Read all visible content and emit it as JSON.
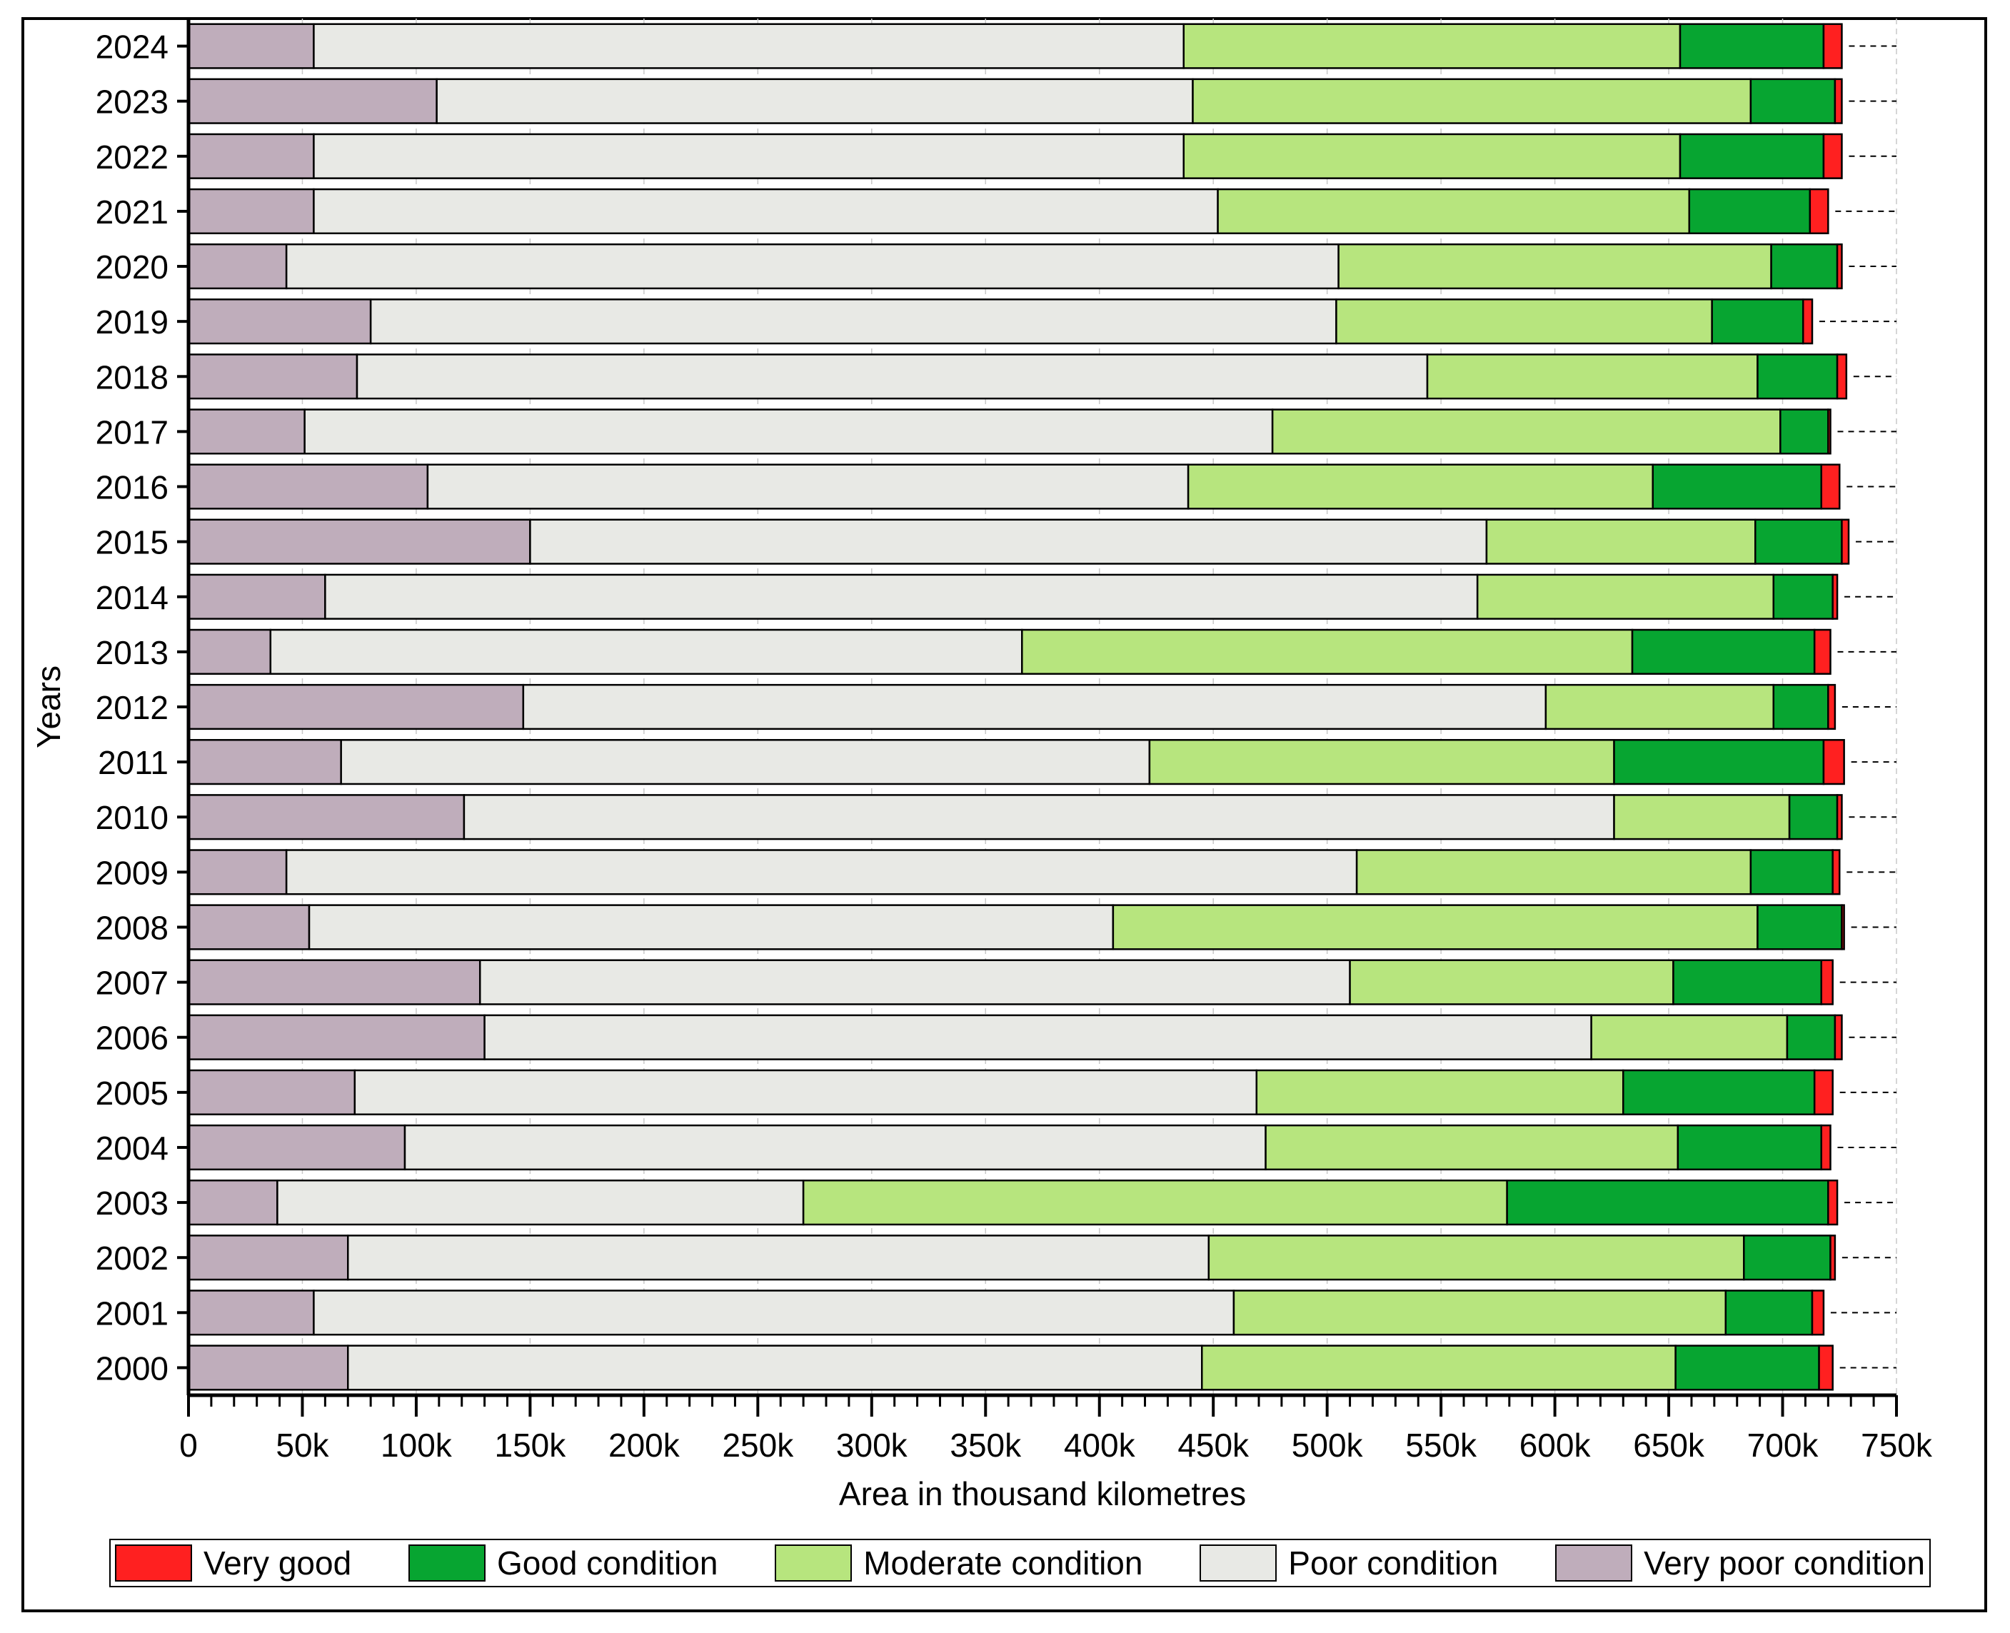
{
  "chart_data": {
    "type": "bar",
    "orientation": "horizontal",
    "stacked": true,
    "xlabel": "Area in thousand kilometres",
    "ylabel": "Years",
    "xlim": [
      0,
      750000
    ],
    "x_ticks": [
      0,
      50000,
      100000,
      150000,
      200000,
      250000,
      300000,
      350000,
      400000,
      450000,
      500000,
      550000,
      600000,
      650000,
      700000,
      750000
    ],
    "x_tick_labels": [
      "0",
      "50k",
      "100k",
      "150k",
      "200k",
      "250k",
      "300k",
      "350k",
      "400k",
      "450k",
      "500k",
      "550k",
      "600k",
      "650k",
      "700k",
      "750k"
    ],
    "grid": "dashed vertical",
    "legend_position": "bottom",
    "categories": [
      "2024",
      "2023",
      "2022",
      "2021",
      "2020",
      "2019",
      "2018",
      "2017",
      "2016",
      "2015",
      "2014",
      "2013",
      "2012",
      "2011",
      "2010",
      "2009",
      "2008",
      "2007",
      "2006",
      "2005",
      "2004",
      "2003",
      "2002",
      "2001",
      "2000"
    ],
    "stack_order": [
      "Very poor condition",
      "Poor condition",
      "Moderate condition",
      "Good condition",
      "Very good"
    ],
    "series": [
      {
        "name": "Very poor condition",
        "color": "#bfadbb",
        "values": [
          55000,
          109000,
          55000,
          55000,
          43000,
          80000,
          74000,
          51000,
          105000,
          150000,
          60000,
          36000,
          147000,
          67000,
          121000,
          43000,
          53000,
          128000,
          130000,
          73000,
          95000,
          39000,
          70000,
          55000,
          70000
        ]
      },
      {
        "name": "Poor condition",
        "color": "#e8e9e5",
        "values": [
          382000,
          332000,
          382000,
          397000,
          462000,
          424000,
          470000,
          425000,
          334000,
          420000,
          506000,
          330000,
          449000,
          355000,
          505000,
          470000,
          353000,
          382000,
          486000,
          396000,
          378000,
          231000,
          378000,
          404000,
          375000
        ]
      },
      {
        "name": "Moderate condition",
        "color": "#b7e57e",
        "values": [
          218000,
          245000,
          218000,
          207000,
          190000,
          165000,
          145000,
          223000,
          204000,
          118000,
          130000,
          268000,
          100000,
          204000,
          77000,
          173000,
          283000,
          142000,
          86000,
          161000,
          181000,
          309000,
          235000,
          216000,
          208000
        ]
      },
      {
        "name": "Good condition",
        "color": "#07a531",
        "values": [
          63000,
          37000,
          63000,
          53000,
          29000,
          40000,
          35000,
          21000,
          74000,
          38000,
          26000,
          80000,
          24000,
          92000,
          21000,
          36000,
          37000,
          65000,
          21000,
          84000,
          63000,
          141000,
          38000,
          38000,
          63000
        ]
      },
      {
        "name": "Very good",
        "color": "#ff2020",
        "values": [
          8000,
          3000,
          8000,
          8000,
          2000,
          4000,
          4000,
          1000,
          8000,
          3000,
          2000,
          7000,
          3000,
          9000,
          2000,
          3000,
          1000,
          5000,
          3000,
          8000,
          4000,
          4000,
          2000,
          5000,
          6000
        ]
      }
    ]
  }
}
